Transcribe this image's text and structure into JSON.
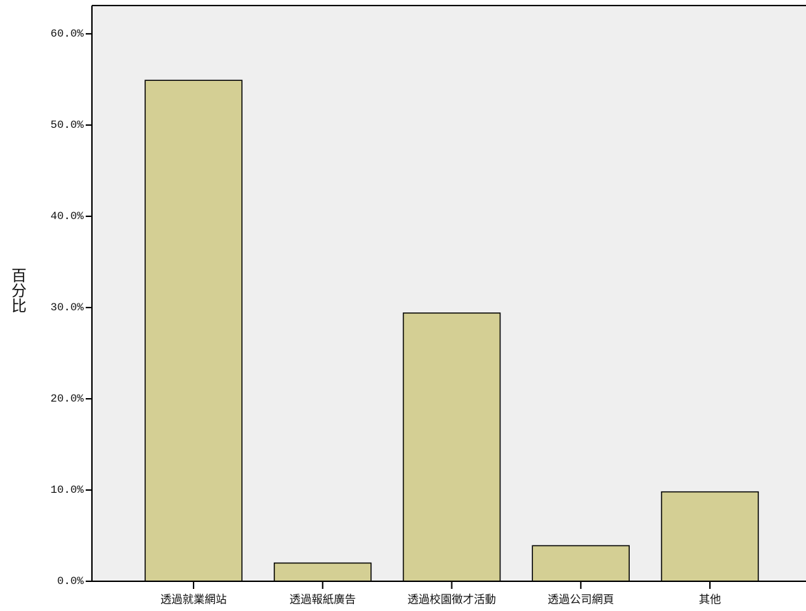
{
  "chart_data": {
    "type": "bar",
    "y_label": "百分比",
    "categories": [
      "透過就業網站",
      "透過報紙廣告",
      "透過校園徵才活動",
      "透過公司網頁",
      "其他"
    ],
    "values": [
      54.9,
      2.0,
      29.4,
      3.9,
      9.8
    ],
    "color": "#d4cf94",
    "ylim": [
      0,
      63.1
    ],
    "yticks": [
      {
        "value": 0,
        "label": "0.0%"
      },
      {
        "value": 10,
        "label": "10.0%"
      },
      {
        "value": 20,
        "label": "20.0%"
      },
      {
        "value": 30,
        "label": "30.0%"
      },
      {
        "value": 40,
        "label": "40.0%"
      },
      {
        "value": 50,
        "label": "50.0%"
      },
      {
        "value": 60,
        "label": "60.0%"
      }
    ]
  }
}
